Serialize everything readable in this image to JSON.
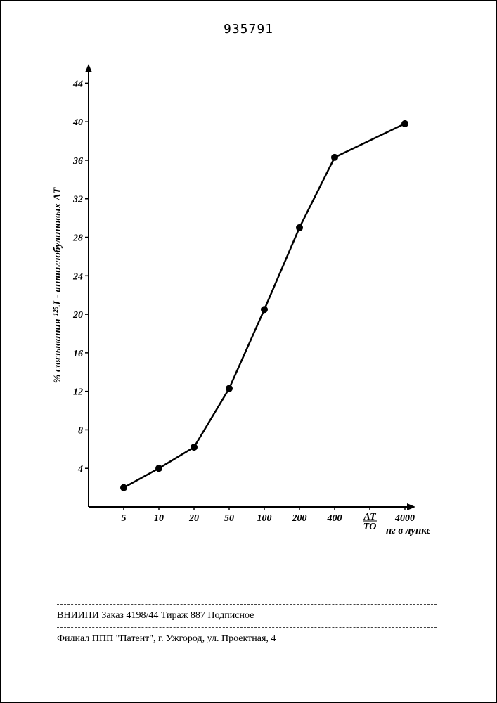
{
  "document_number": "935791",
  "chart": {
    "type": "line",
    "background_color": "#ffffff",
    "line_color": "#000000",
    "line_width": 2.5,
    "marker_shape": "circle",
    "marker_size": 5,
    "marker_fill": "#000000",
    "x_label": "АТ/ТО нг в лунке",
    "y_label": "% связывания ¹²⁵J - антиглобулиновых АТ",
    "x_ticks": [
      "5",
      "10",
      "20",
      "50",
      "100",
      "200",
      "400",
      "",
      "4000"
    ],
    "y_ticks": [
      4,
      8,
      12,
      16,
      20,
      24,
      28,
      32,
      36,
      40,
      44
    ],
    "x_positions": [
      1,
      2,
      3,
      4,
      5,
      6,
      7,
      8,
      9
    ],
    "points": [
      {
        "xi": 1,
        "y": 2.0
      },
      {
        "xi": 2,
        "y": 4.0
      },
      {
        "xi": 3,
        "y": 6.2
      },
      {
        "xi": 4,
        "y": 12.3
      },
      {
        "xi": 5,
        "y": 20.5
      },
      {
        "xi": 6,
        "y": 29.0
      },
      {
        "xi": 7,
        "y": 36.3
      },
      {
        "xi": 9,
        "y": 39.8
      }
    ],
    "axis_color": "#000000",
    "axis_width": 2,
    "arrow_size": 10,
    "label_fontsize": 14,
    "tick_fontsize": 14,
    "ylim": [
      0,
      46
    ],
    "x_axis_y": 0
  },
  "footer": {
    "line1": "ВНИИПИ  Заказ 4198/44  Тираж 887  Подписное",
    "line2": "Филиал ППП \"Патент\", г. Ужгород, ул. Проектная, 4"
  }
}
